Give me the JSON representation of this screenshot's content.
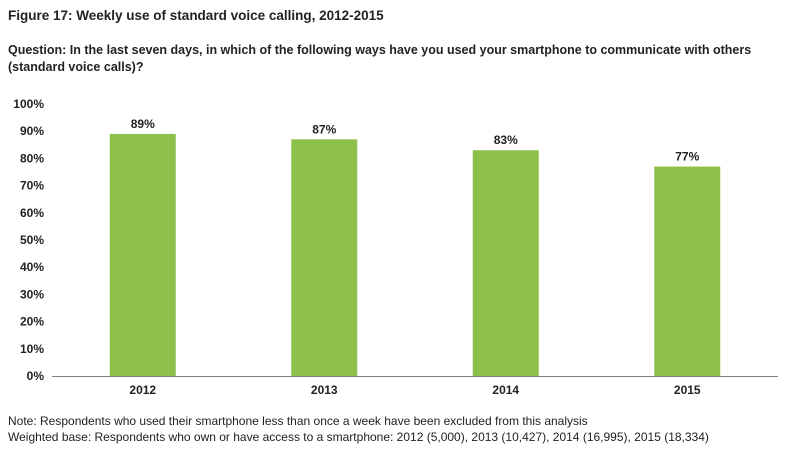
{
  "header": {
    "figure_title": "Figure 17: Weekly use of standard voice calling, 2012-2015",
    "question": "Question: In the last seven days, in which of the following ways have you used your smartphone to communicate with others (standard voice calls)?"
  },
  "chart_data": {
    "type": "bar",
    "categories": [
      "2012",
      "2013",
      "2014",
      "2015"
    ],
    "values": [
      89,
      87,
      83,
      77
    ],
    "value_labels": [
      "89%",
      "87%",
      "83%",
      "77%"
    ],
    "y_ticks": [
      "0%",
      "10%",
      "20%",
      "30%",
      "40%",
      "50%",
      "60%",
      "70%",
      "80%",
      "90%",
      "100%"
    ],
    "ylim": [
      0,
      100
    ],
    "y_unit": "%",
    "title": "",
    "xlabel": "",
    "ylabel": "",
    "grid": false,
    "legend": "none",
    "bar_color": "#8dc04a"
  },
  "footer": {
    "note": "Note: Respondents who used their smartphone less than once a week have been excluded from this analysis",
    "base": "Weighted base: Respondents who own or have access to a smartphone: 2012 (5,000), 2013 (10,427), 2014 (16,995), 2015 (18,334)"
  }
}
